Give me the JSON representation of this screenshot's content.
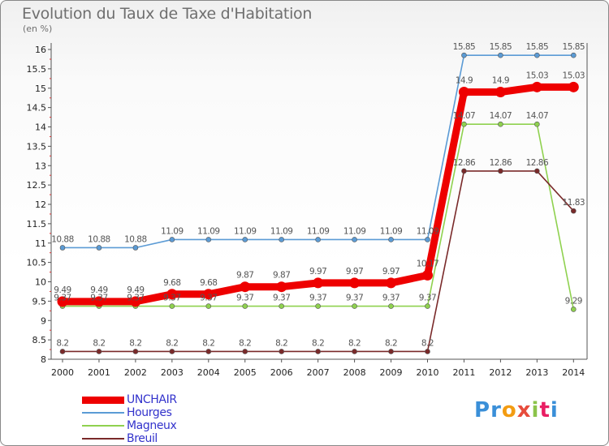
{
  "header": {
    "title": "Evolution du Taux de Taxe d'Habitation",
    "subtitle": "(en %)"
  },
  "logo": {
    "text": "Proxiti"
  },
  "chart_data": {
    "type": "line",
    "title": "Evolution du Taux de Taxe d'Habitation",
    "subtitle": "(en %)",
    "xlabel": "",
    "ylabel": "",
    "ylim": [
      8,
      16
    ],
    "yticks": [
      "8",
      "8.5",
      "9",
      "9.5",
      "10",
      "10.5",
      "11",
      "11.5",
      "12",
      "12.5",
      "13",
      "13.5",
      "14",
      "14.5",
      "15",
      "15.5",
      "16"
    ],
    "grid": false,
    "legend_position": "bottom-left",
    "x": [
      "2000",
      "2001",
      "2002",
      "2003",
      "2004",
      "2005",
      "2006",
      "2007",
      "2008",
      "2009",
      "2010",
      "2011",
      "2012",
      "2013",
      "2014"
    ],
    "series": [
      {
        "name": "Hourges",
        "color": "#5b9bd5",
        "values": [
          10.88,
          10.88,
          10.88,
          11.09,
          11.09,
          11.09,
          11.09,
          11.09,
          11.09,
          11.09,
          11.09,
          15.85,
          15.85,
          15.85,
          15.85
        ],
        "labels": [
          "10.88",
          "10.88",
          "10.88",
          "11.09",
          "11.09",
          "11.09",
          "11.09",
          "11.09",
          "11.09",
          "11.09",
          "11.09",
          "15.85",
          "15.85",
          "15.85",
          "15.85"
        ]
      },
      {
        "name": "Magneux",
        "color": "#8fd14f",
        "values": [
          9.37,
          9.37,
          9.37,
          9.37,
          9.37,
          9.37,
          9.37,
          9.37,
          9.37,
          9.37,
          9.37,
          14.07,
          14.07,
          14.07,
          9.29
        ],
        "labels": [
          "9.37",
          "9.37",
          "9.37",
          "9.37",
          "9.37",
          "9.37",
          "9.37",
          "9.37",
          "9.37",
          "9.37",
          "9.37",
          "14.07",
          "14.07",
          "14.07",
          "9.29"
        ]
      },
      {
        "name": "Breuil",
        "color": "#7a2a2a",
        "values": [
          8.2,
          8.2,
          8.2,
          8.2,
          8.2,
          8.2,
          8.2,
          8.2,
          8.2,
          8.2,
          8.2,
          12.86,
          12.86,
          12.86,
          11.83
        ],
        "labels": [
          "8.2",
          "8.2",
          "8.2",
          "8.2",
          "8.2",
          "8.2",
          "8.2",
          "8.2",
          "8.2",
          "8.2",
          "8.2",
          "12.86",
          "12.86",
          "12.86",
          "11.83"
        ]
      },
      {
        "name": "UNCHAIR",
        "color": "#ee0000",
        "values": [
          9.49,
          9.49,
          9.49,
          9.68,
          9.68,
          9.87,
          9.87,
          9.97,
          9.97,
          9.97,
          10.17,
          14.9,
          14.9,
          15.03,
          15.03
        ],
        "labels": [
          "9.49",
          "9.49",
          "9.49",
          "9.68",
          "9.68",
          "9.87",
          "9.87",
          "9.97",
          "9.97",
          "9.97",
          "10.17",
          "14.9",
          "14.9",
          "15.03",
          "15.03"
        ]
      }
    ]
  },
  "legend": [
    {
      "label": "UNCHAIR",
      "color": "#ee0000"
    },
    {
      "label": "Hourges",
      "color": "#5b9bd5"
    },
    {
      "label": "Magneux",
      "color": "#8fd14f"
    },
    {
      "label": "Breuil",
      "color": "#7a2a2a"
    }
  ]
}
